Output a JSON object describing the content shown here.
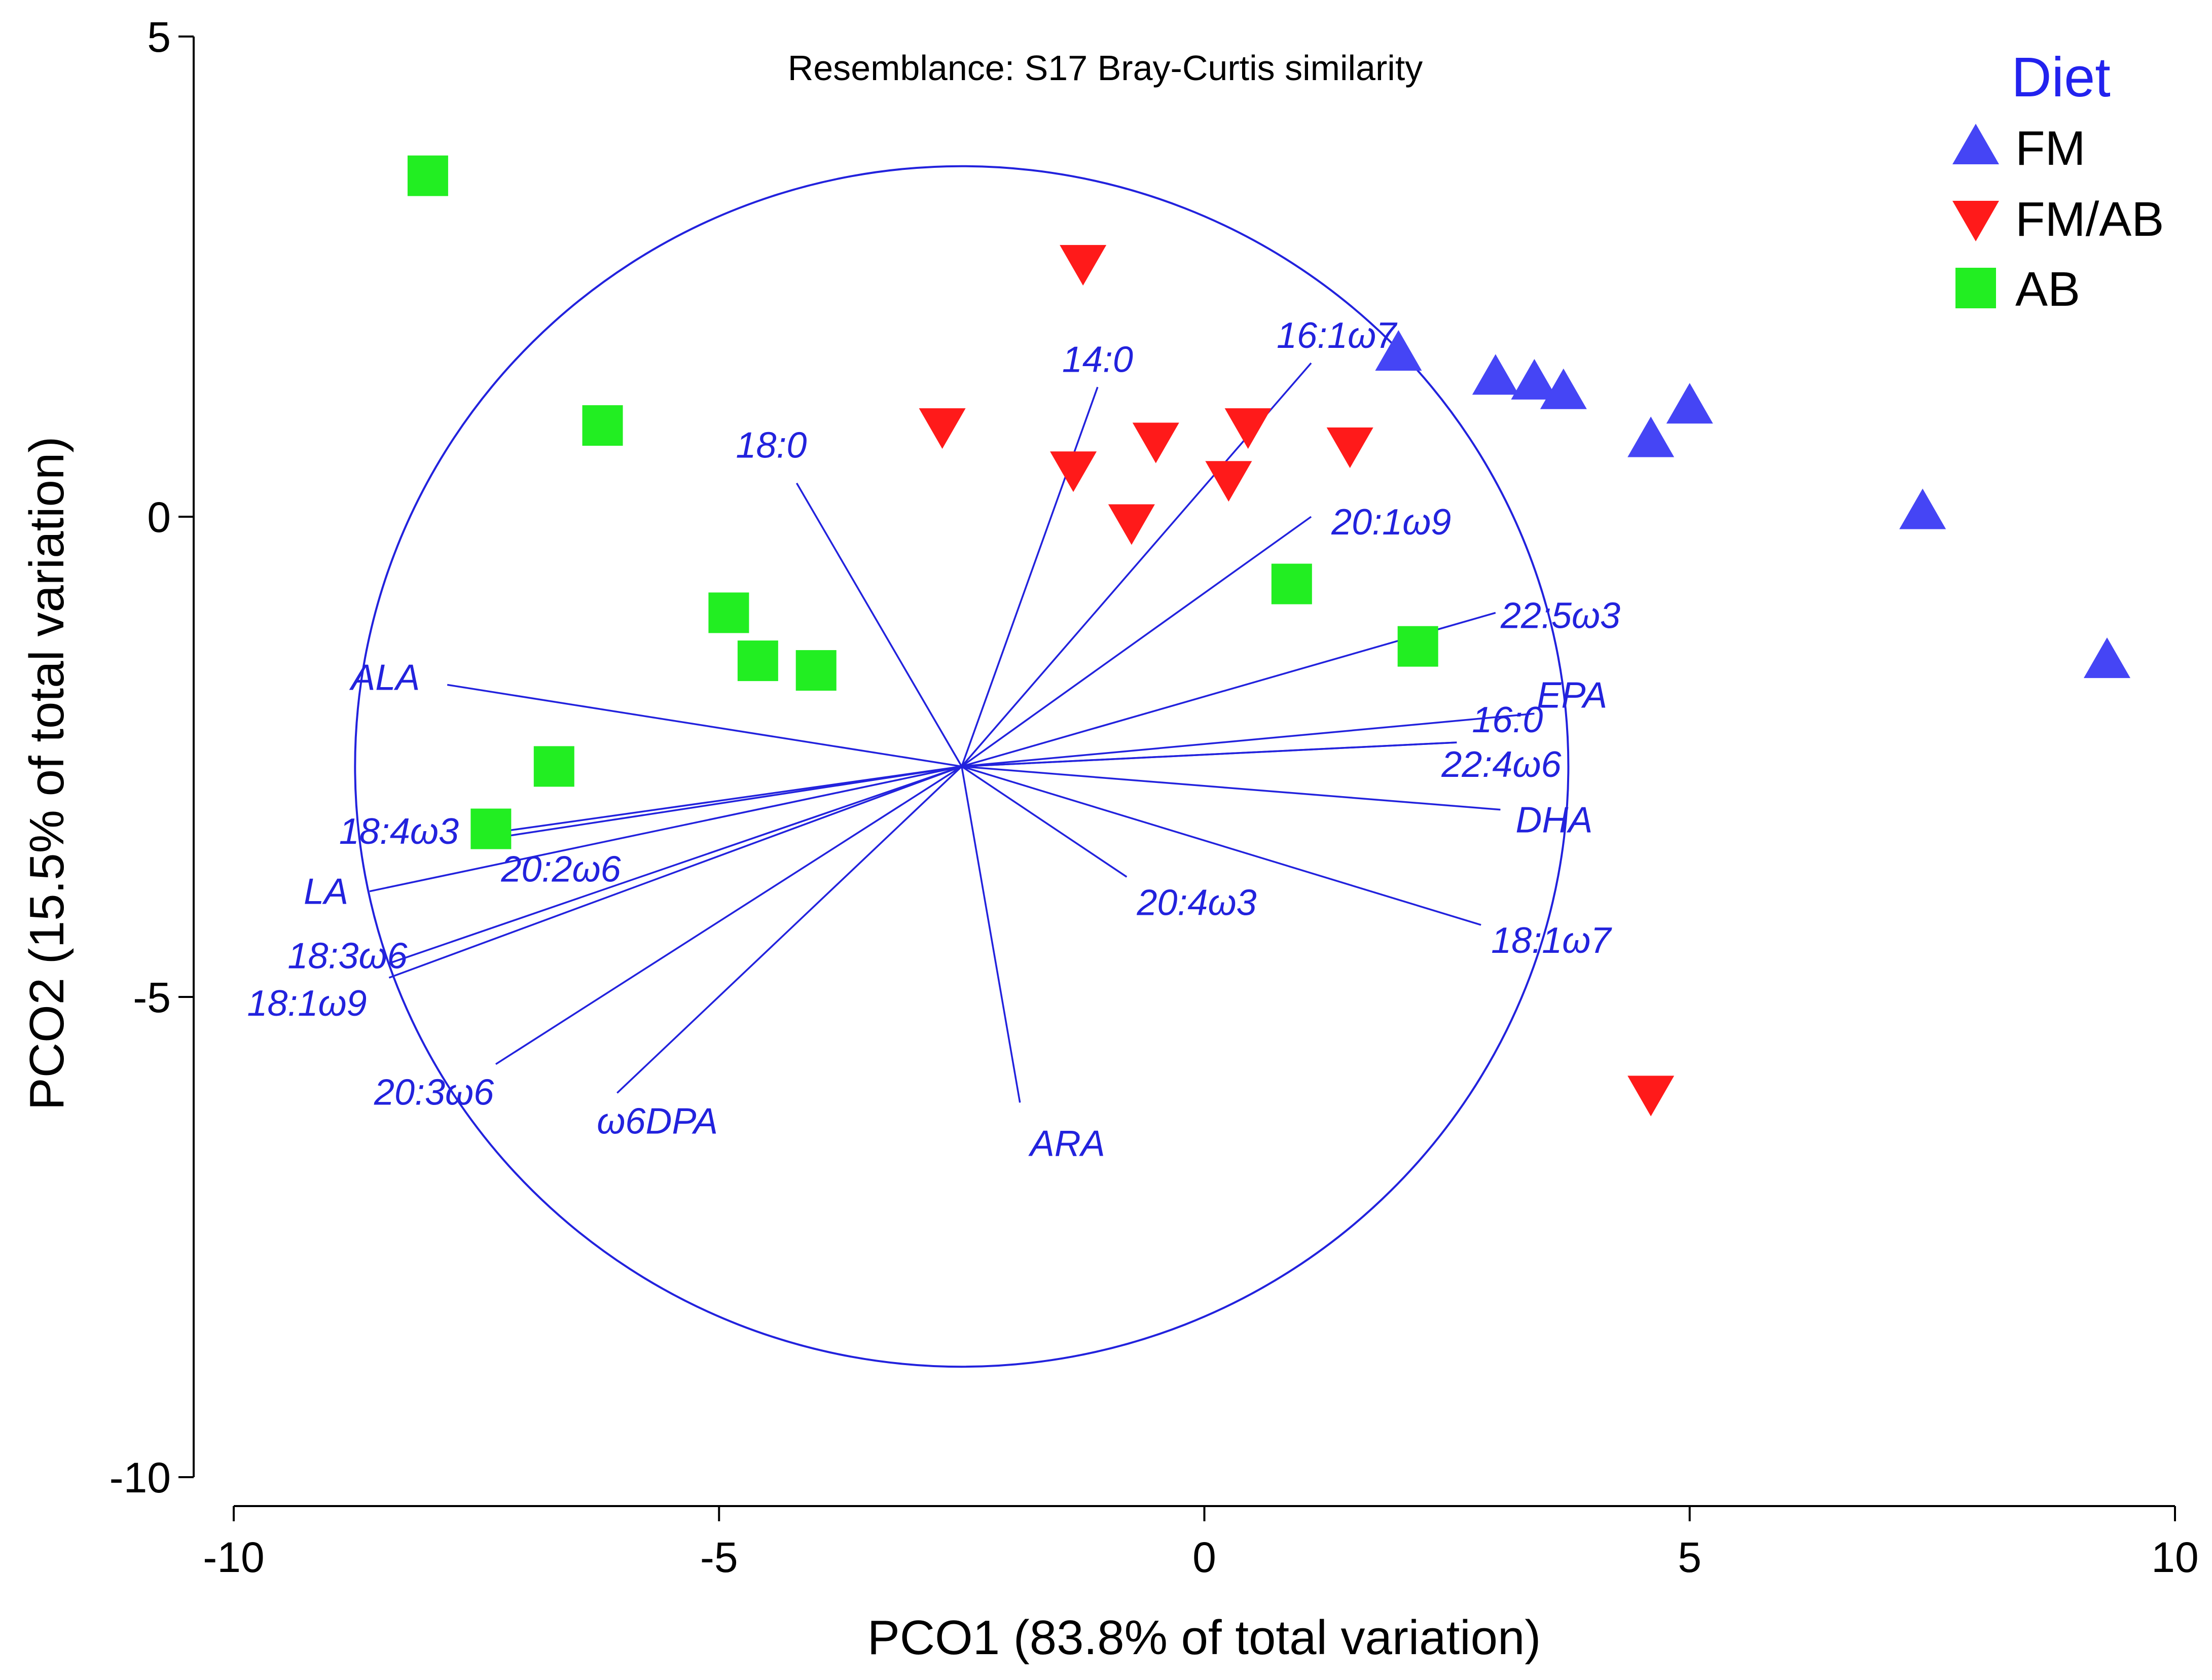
{
  "chart_data": {
    "type": "scatter",
    "title": "Resemblance: S17 Bray-Curtis similarity",
    "xlabel": "PCO1 (83.8% of total variation)",
    "ylabel": "PCO2 (15.5% of total variation)",
    "xlim": [
      -10,
      10
    ],
    "ylim": [
      -10,
      5
    ],
    "xticks": [
      -10,
      -5,
      0,
      5,
      10
    ],
    "yticks": [
      5,
      0,
      -5,
      -10
    ],
    "xtick_labels": [
      "-10",
      "-5",
      "0",
      "5",
      "10"
    ],
    "ytick_labels": [
      "5",
      "0",
      "-5",
      "-10"
    ],
    "grid": false,
    "legend": {
      "title": "Diet",
      "position": "top-right",
      "title_color": "#2222ee"
    },
    "series": [
      {
        "name": "FM",
        "marker": "triangle-up",
        "color": "#4545f5",
        "points": [
          [
            2.0,
            1.7
          ],
          [
            3.0,
            1.45
          ],
          [
            3.4,
            1.4
          ],
          [
            3.7,
            1.3
          ],
          [
            4.6,
            0.8
          ],
          [
            5.0,
            1.15
          ],
          [
            7.4,
            0.05
          ],
          [
            9.3,
            -1.5
          ]
        ]
      },
      {
        "name": "FM/AB",
        "marker": "triangle-down",
        "color": "#ff1a1a",
        "points": [
          [
            -1.25,
            2.65
          ],
          [
            -2.7,
            0.95
          ],
          [
            -1.35,
            0.5
          ],
          [
            -0.5,
            0.8
          ],
          [
            0.45,
            0.95
          ],
          [
            1.5,
            0.75
          ],
          [
            0.25,
            0.4
          ],
          [
            -0.75,
            -0.05
          ],
          [
            4.6,
            -6.0
          ]
        ]
      },
      {
        "name": "AB",
        "marker": "square",
        "color": "#22ee22",
        "points": [
          [
            -8.0,
            3.55
          ],
          [
            -6.2,
            0.95
          ],
          [
            -4.9,
            -1.0
          ],
          [
            -4.6,
            -1.5
          ],
          [
            -4.0,
            -1.6
          ],
          [
            -6.7,
            -2.6
          ],
          [
            -7.35,
            -3.25
          ],
          [
            0.9,
            -0.7
          ],
          [
            2.2,
            -1.35
          ]
        ]
      }
    ],
    "vector_overlay": {
      "origin": [
        -2.5,
        -2.6
      ],
      "circle_radius": 6.25,
      "color": "#2222dd",
      "vectors": [
        {
          "label": "14:0",
          "end": [
            -1.1,
            1.35
          ]
        },
        {
          "label": "16:1ω7",
          "end": [
            1.1,
            1.6
          ]
        },
        {
          "label": "18:0",
          "end": [
            -4.2,
            0.35
          ]
        },
        {
          "label": "20:1ω9",
          "end": [
            1.1,
            0.0
          ]
        },
        {
          "label": "22:5ω3",
          "end": [
            3.0,
            -1.0
          ]
        },
        {
          "label": "EPA",
          "end": [
            3.4,
            -2.05
          ]
        },
        {
          "label": "16:0",
          "end": [
            2.6,
            -2.35
          ]
        },
        {
          "label": "22:4ω6",
          "end": [
            2.6,
            -2.35
          ]
        },
        {
          "label": "DHA",
          "end": [
            3.05,
            -3.05
          ]
        },
        {
          "label": "18:1ω7",
          "end": [
            2.85,
            -4.25
          ]
        },
        {
          "label": "20:4ω3",
          "end": [
            -0.8,
            -3.75
          ]
        },
        {
          "label": "ARA",
          "end": [
            -1.9,
            -6.1
          ]
        },
        {
          "label": "ω6DPA",
          "end": [
            -6.05,
            -6.0
          ]
        },
        {
          "label": "20:3ω6",
          "end": [
            -7.3,
            -5.7
          ]
        },
        {
          "label": "18:1ω9",
          "end": [
            -8.4,
            -4.8
          ]
        },
        {
          "label": "18:3ω6",
          "end": [
            -8.4,
            -4.65
          ]
        },
        {
          "label": "LA",
          "end": [
            -8.6,
            -3.9
          ]
        },
        {
          "label": "20:2ω6",
          "end": [
            -7.35,
            -3.35
          ]
        },
        {
          "label": "18:4ω3",
          "end": [
            -7.4,
            -3.3
          ]
        },
        {
          "label": "ALA",
          "end": [
            -7.8,
            -1.75
          ]
        }
      ]
    }
  }
}
